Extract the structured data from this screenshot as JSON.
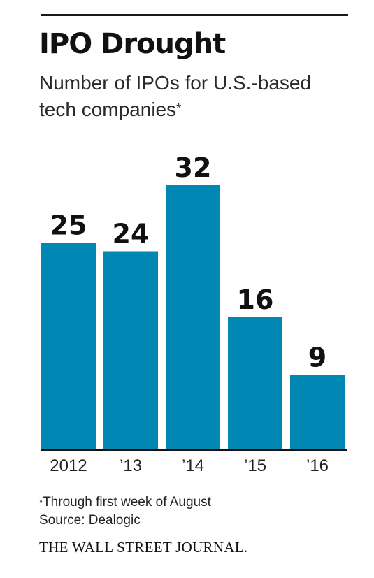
{
  "chart_data": {
    "type": "bar",
    "title": "IPO Drought",
    "subtitle": "Number of IPOs for U.S.-based tech companies",
    "subtitle_mark": "*",
    "categories": [
      "2012",
      "’13",
      "’14",
      "’15",
      "’16"
    ],
    "values": [
      25,
      24,
      32,
      16,
      9
    ],
    "ylim": [
      0,
      32
    ],
    "grid": false,
    "bar_color": "#0087b3",
    "xlabel": "",
    "ylabel": ""
  },
  "footnote": {
    "mark": "*",
    "text": "Through first week of August"
  },
  "source": "Source: Dealogic",
  "publisher": "THE WALL STREET JOURNAL."
}
